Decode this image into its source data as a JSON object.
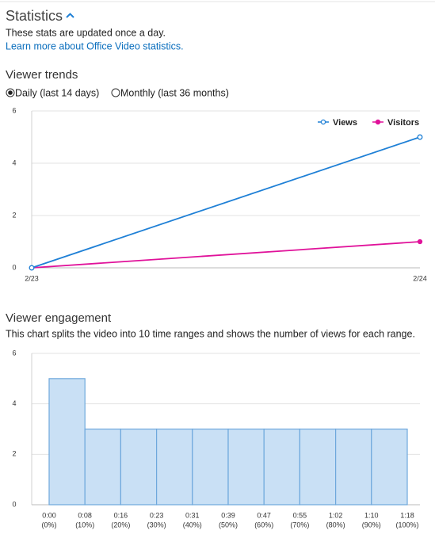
{
  "header": {
    "title": "Statistics",
    "description": "These stats are updated once a day.",
    "link": "Learn more about Office Video statistics."
  },
  "viewer_trends_options": {
    "options": [
      "Daily (last 14 days)",
      "Monthly (last 36 months)"
    ],
    "selected": 0
  },
  "chart_data": [
    {
      "type": "line",
      "title": "Viewer trends",
      "categories": [
        "2/23",
        "2/24"
      ],
      "series": [
        {
          "name": "Views",
          "color": "#1f80d6",
          "marker": "hollow",
          "values": [
            0,
            5
          ]
        },
        {
          "name": "Visitors",
          "color": "#e0129a",
          "marker": "filled",
          "values": [
            0,
            1
          ]
        }
      ],
      "ylim": [
        0,
        6
      ],
      "yticks": [
        0,
        2,
        4,
        6
      ],
      "grid": true,
      "legend": "top-right"
    },
    {
      "type": "bar",
      "title": "Viewer engagement",
      "subtitle": "This chart splits the video into 10 time ranges and shows the number of views for each range.",
      "edge_labels": [
        "0:00",
        "0:08",
        "0:16",
        "0:23",
        "0:31",
        "0:39",
        "0:47",
        "0:55",
        "1:02",
        "1:10",
        "1:18"
      ],
      "edge_sublabels": [
        "(0%)",
        "(10%)",
        "(20%)",
        "(30%)",
        "(40%)",
        "(50%)",
        "(60%)",
        "(70%)",
        "(80%)",
        "(90%)",
        "(100%)"
      ],
      "values": [
        5,
        3,
        3,
        3,
        3,
        3,
        3,
        3,
        3,
        3
      ],
      "color": "#c9e0f5",
      "edge_color": "#6ea8dc",
      "ylim": [
        0,
        6
      ],
      "yticks": [
        0,
        2,
        4,
        6
      ],
      "grid": true
    }
  ]
}
